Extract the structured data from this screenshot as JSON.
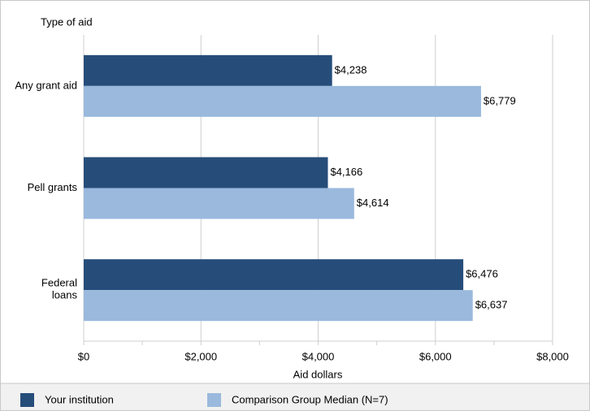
{
  "chart_data": {
    "type": "hbar",
    "y_axis_title": "Type of aid",
    "x_axis_title": "Aid dollars",
    "categories": [
      "Any grant aid",
      "Pell grants",
      "Federal\nloans"
    ],
    "series": [
      {
        "name": "Your institution",
        "color": "#264d7a",
        "values": [
          4238,
          4166,
          6476
        ],
        "value_labels": [
          "$4,238",
          "$4,166",
          "$6,476"
        ]
      },
      {
        "name": "Comparison Group Median (N=7)",
        "color": "#9ab9dd",
        "values": [
          6779,
          4614,
          6637
        ],
        "value_labels": [
          "$6,779",
          "$4,614",
          "$6,637"
        ]
      }
    ],
    "xlim": [
      0,
      8000
    ],
    "xticks": [
      {
        "value": 0,
        "label": "$0"
      },
      {
        "value": 2000,
        "label": "$2,000"
      },
      {
        "value": 4000,
        "label": "$4,000"
      },
      {
        "value": 6000,
        "label": "$6,000"
      },
      {
        "value": 8000,
        "label": "$8,000"
      }
    ],
    "xminorticks": [
      1000,
      3000,
      5000,
      7000
    ],
    "grid": true,
    "legend": "bottom"
  }
}
